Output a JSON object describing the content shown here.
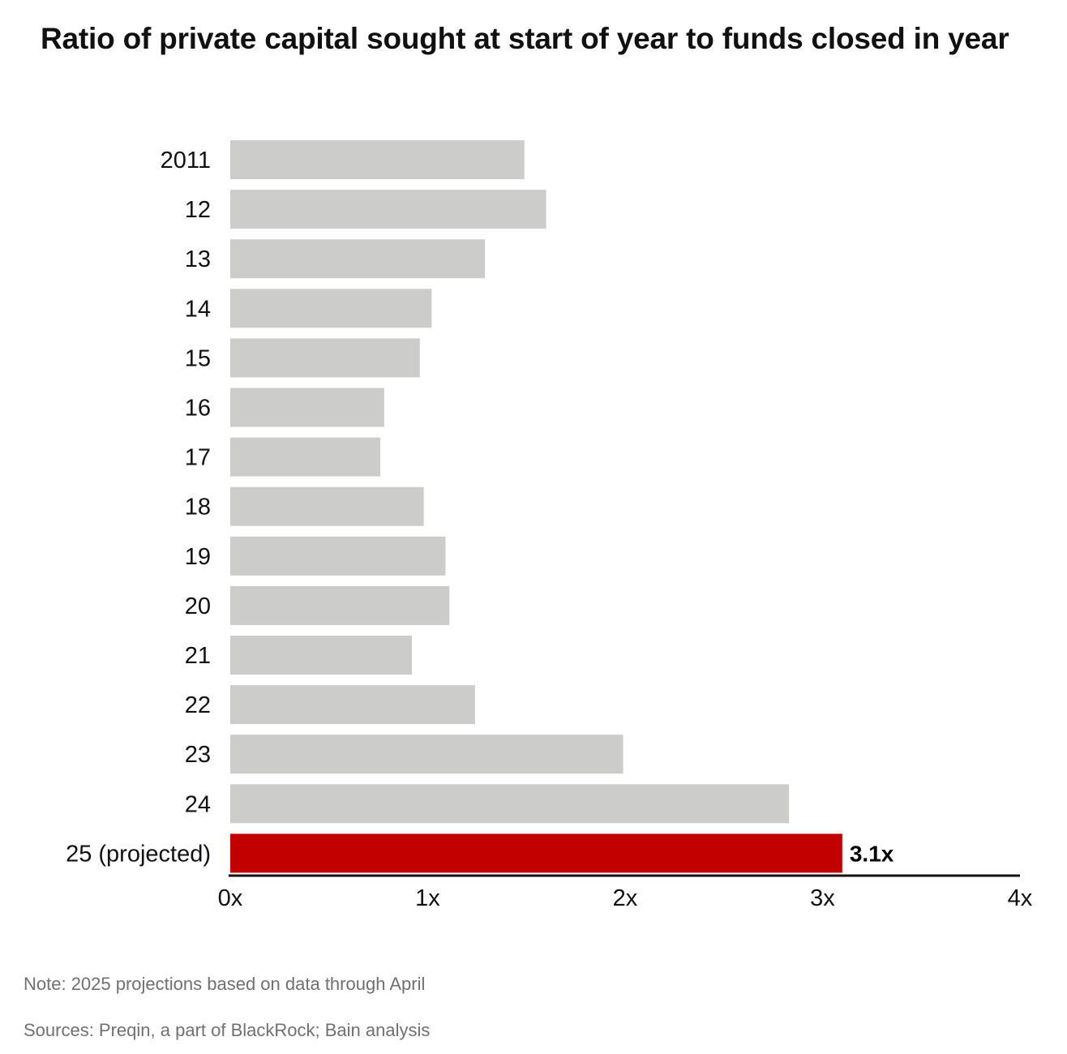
{
  "chart_data": {
    "type": "bar",
    "orientation": "horizontal",
    "title": "Ratio of private capital sought at start of year to funds closed in year",
    "categories": [
      "2011",
      "12",
      "13",
      "14",
      "15",
      "16",
      "17",
      "18",
      "19",
      "20",
      "21",
      "22",
      "23",
      "24",
      "25 (projected)"
    ],
    "values": [
      1.49,
      1.6,
      1.29,
      1.02,
      0.96,
      0.78,
      0.76,
      0.98,
      1.09,
      1.11,
      0.92,
      1.24,
      1.99,
      2.83,
      3.1
    ],
    "xlim": [
      0,
      4
    ],
    "x_ticks": [
      "0x",
      "1x",
      "2x",
      "3x",
      "4x"
    ],
    "grid": false,
    "highlight_index": 14,
    "data_labels": [
      {
        "index": 14,
        "text": "3.1x"
      }
    ],
    "colors": {
      "bar": "#cccccb",
      "highlight": "#c20000",
      "axis": "#111111"
    }
  },
  "notes": {
    "note": "Note: 2025 projections based on data through April",
    "sources": "Sources: Preqin, a part of BlackRock; Bain analysis"
  }
}
